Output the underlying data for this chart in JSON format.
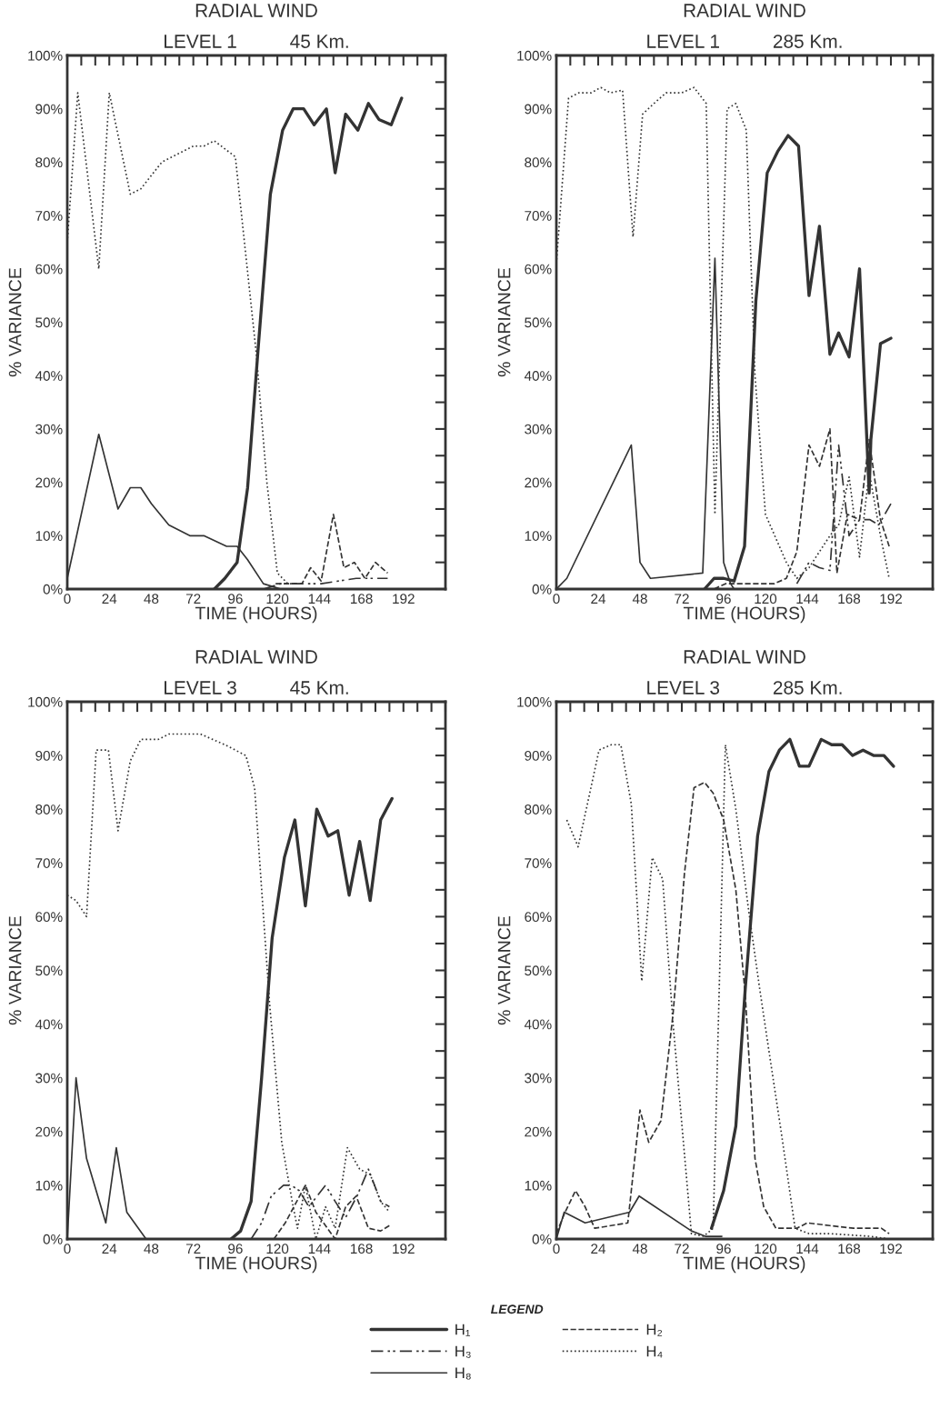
{
  "chart_data": [
    {
      "type": "line",
      "title": "RADIAL WIND",
      "subtitle": "LEVEL 1          45 Km.",
      "xlabel": "TIME (HOURS)",
      "ylabel": "% VARIANCE",
      "xlim": [
        0,
        216
      ],
      "ylim": [
        0,
        100
      ],
      "xticks": [
        0,
        {
          "value": 8,
          "label": null
        },
        {
          "value": 16,
          "label": null
        },
        24,
        {
          "value": 32,
          "label": null
        },
        {
          "value": 40,
          "label": null
        },
        48,
        {
          "value": 56,
          "label": null
        },
        {
          "value": 64,
          "label": null
        },
        72,
        {
          "value": 80,
          "label": null
        },
        {
          "value": 88,
          "label": null
        },
        96,
        {
          "value": 104,
          "label": null
        },
        {
          "value": 112,
          "label": null
        },
        120,
        {
          "value": 128,
          "label": null
        },
        {
          "value": 136,
          "label": null
        },
        144,
        {
          "value": 152,
          "label": null
        },
        {
          "value": 160,
          "label": null
        },
        168,
        {
          "value": 176,
          "label": null
        },
        {
          "value": 184,
          "label": null
        },
        192,
        {
          "value": 200,
          "label": null
        },
        {
          "value": 208,
          "label": null
        },
        {
          "value": 216,
          "label": null
        }
      ],
      "yticks": [
        {
          "value": 0,
          "label": "0%"
        },
        {
          "value": 5,
          "label": null
        },
        {
          "value": 10,
          "label": "10%"
        },
        {
          "value": 15,
          "label": null
        },
        {
          "value": 20,
          "label": "20%"
        },
        {
          "value": 25,
          "label": null
        },
        {
          "value": 30,
          "label": "30%"
        },
        {
          "value": 35,
          "label": null
        },
        {
          "value": 40,
          "label": "40%"
        },
        {
          "value": 45,
          "label": null
        },
        {
          "value": 50,
          "label": "50%"
        },
        {
          "value": 55,
          "label": null
        },
        {
          "value": 60,
          "label": "60%"
        },
        {
          "value": 65,
          "label": null
        },
        {
          "value": 70,
          "label": "70%"
        },
        {
          "value": 75,
          "label": null
        },
        {
          "value": 80,
          "label": "80%"
        },
        {
          "value": 85,
          "label": null
        },
        {
          "value": 90,
          "label": "90%"
        },
        {
          "value": 95,
          "label": null
        },
        {
          "value": 100,
          "label": "100%"
        }
      ],
      "grid": false,
      "series": [
        {
          "color": "#333333",
          "line_style": "solid",
          "x": [
            84,
            90,
            97,
            103,
            109,
            116,
            123,
            129,
            135,
            141,
            148,
            153,
            159,
            166,
            172,
            178,
            185,
            191
          ],
          "values": [
            0,
            2,
            5,
            19,
            45,
            74,
            86,
            90,
            90,
            87,
            90,
            78,
            89,
            86,
            91,
            88,
            87,
            92
          ]
        },
        {
          "color": "#333333",
          "line_style": "dashed",
          "x": [
            119,
            126,
            134,
            139,
            145,
            152,
            158,
            164,
            170,
            176,
            183
          ],
          "values": [
            1,
            1,
            1,
            4,
            1.5,
            14,
            4,
            5,
            2,
            5,
            3
          ]
        },
        {
          "color": "#333333",
          "line_style": "dashdot",
          "x": [
            112,
            122,
            133,
            145,
            155,
            165,
            176,
            183
          ],
          "values": [
            0,
            1,
            1,
            1,
            1.5,
            2,
            2,
            2
          ]
        },
        {
          "color": "#333333",
          "line_style": "dotted",
          "x": [
            0,
            6,
            18,
            24,
            36,
            42,
            54,
            72,
            78,
            84,
            96,
            108,
            114,
            120,
            126,
            132
          ],
          "values": [
            65,
            93,
            60,
            93,
            74,
            75,
            80,
            83,
            83,
            84,
            81,
            44,
            20,
            3,
            1,
            1
          ]
        },
        {
          "color": "#333333",
          "line_style": "solid",
          "x": [
            0,
            18,
            29,
            36,
            42,
            48,
            58,
            70,
            78,
            91,
            97,
            103,
            112,
            122
          ],
          "values": [
            2,
            29,
            15,
            19,
            19,
            16,
            12,
            10,
            10,
            8,
            8,
            5.5,
            1,
            0
          ]
        }
      ]
    },
    {
      "type": "line",
      "title": "RADIAL WIND",
      "subtitle": "LEVEL 1          285 Km.",
      "xlabel": "TIME (HOURS)",
      "ylabel": "% VARIANCE",
      "xlim": [
        0,
        216
      ],
      "ylim": [
        0,
        100
      ],
      "xticks": [
        0,
        {
          "value": 8,
          "label": null
        },
        {
          "value": 16,
          "label": null
        },
        24,
        {
          "value": 32,
          "label": null
        },
        {
          "value": 40,
          "label": null
        },
        48,
        {
          "value": 56,
          "label": null
        },
        {
          "value": 64,
          "label": null
        },
        72,
        {
          "value": 80,
          "label": null
        },
        {
          "value": 88,
          "label": null
        },
        96,
        {
          "value": 104,
          "label": null
        },
        {
          "value": 112,
          "label": null
        },
        120,
        {
          "value": 128,
          "label": null
        },
        {
          "value": 136,
          "label": null
        },
        144,
        {
          "value": 152,
          "label": null
        },
        {
          "value": 160,
          "label": null
        },
        168,
        {
          "value": 176,
          "label": null
        },
        {
          "value": 184,
          "label": null
        },
        192,
        {
          "value": 200,
          "label": null
        },
        {
          "value": 208,
          "label": null
        },
        {
          "value": 216,
          "label": null
        }
      ],
      "yticks": [
        {
          "value": 0,
          "label": "0%"
        },
        {
          "value": 5,
          "label": null
        },
        {
          "value": 10,
          "label": "10%"
        },
        {
          "value": 15,
          "label": null
        },
        {
          "value": 20,
          "label": "20%"
        },
        {
          "value": 25,
          "label": null
        },
        {
          "value": 30,
          "label": "30%"
        },
        {
          "value": 35,
          "label": null
        },
        {
          "value": 40,
          "label": "40%"
        },
        {
          "value": 45,
          "label": null
        },
        {
          "value": 50,
          "label": "50%"
        },
        {
          "value": 55,
          "label": null
        },
        {
          "value": 60,
          "label": "60%"
        },
        {
          "value": 65,
          "label": null
        },
        {
          "value": 70,
          "label": "70%"
        },
        {
          "value": 75,
          "label": null
        },
        {
          "value": 80,
          "label": "80%"
        },
        {
          "value": 85,
          "label": null
        },
        {
          "value": 90,
          "label": "90%"
        },
        {
          "value": 95,
          "label": null
        },
        {
          "value": 100,
          "label": "100%"
        }
      ],
      "grid": false,
      "series": [
        {
          "color": "#333333",
          "line_style": "solid",
          "x": [
            85,
            90.5,
            96,
            102,
            108,
            114.5,
            121,
            127,
            133,
            139,
            145,
            151,
            157,
            162,
            168,
            174,
            179.5,
            180.5,
            186,
            192
          ],
          "values": [
            0,
            2,
            2,
            1.5,
            8,
            54,
            78,
            82,
            85,
            83,
            55,
            68,
            44,
            48,
            43.5,
            60,
            18,
            28,
            46,
            47
          ]
        },
        {
          "color": "#333333",
          "line_style": "dashed",
          "x": [
            90.5,
            97,
            111,
            125,
            132,
            138,
            145,
            151,
            157,
            161,
            167,
            174,
            179.5,
            186,
            191
          ],
          "values": [
            0,
            1,
            1,
            1,
            2,
            7,
            27,
            23,
            30,
            3,
            14,
            13,
            28,
            13,
            8
          ]
        },
        {
          "color": "#333333",
          "line_style": "dashdot",
          "x": [
            138,
            145,
            151,
            157,
            162,
            168,
            174,
            180,
            185,
            192
          ],
          "values": [
            1,
            5,
            4,
            3.5,
            27,
            10,
            13,
            13,
            12,
            16
          ]
        },
        {
          "color": "#333333",
          "line_style": "dotted",
          "x": [
            0,
            7,
            13,
            20,
            25.5,
            31,
            38,
            44,
            49.5,
            56,
            63,
            72,
            79,
            86,
            91,
            98,
            103,
            109,
            114,
            120,
            132,
            138,
            145,
            157,
            162,
            168,
            174,
            179.5,
            186,
            191
          ],
          "values": [
            61,
            92,
            93,
            93,
            94,
            93,
            93.5,
            66,
            89,
            91,
            93,
            93,
            94,
            91,
            14,
            90,
            91,
            86,
            40,
            14,
            5,
            2,
            4,
            10,
            12,
            21,
            6,
            22,
            10,
            2
          ]
        },
        {
          "color": "#333333",
          "line_style": "solid",
          "x": [
            0,
            6,
            43,
            48,
            54,
            84,
            91,
            96,
            100,
            102
          ],
          "values": [
            0,
            2,
            27,
            5,
            2,
            3,
            62,
            5,
            1,
            0
          ]
        }
      ]
    },
    {
      "type": "line",
      "title": "RADIAL WIND",
      "subtitle": "LEVEL 3          45 Km.",
      "xlabel": "TIME (HOURS)",
      "ylabel": "% VARIANCE",
      "xlim": [
        0,
        216
      ],
      "ylim": [
        0,
        100
      ],
      "xticks": [
        0,
        {
          "value": 8,
          "label": null
        },
        {
          "value": 16,
          "label": null
        },
        24,
        {
          "value": 32,
          "label": null
        },
        {
          "value": 40,
          "label": null
        },
        48,
        {
          "value": 56,
          "label": null
        },
        {
          "value": 64,
          "label": null
        },
        72,
        {
          "value": 80,
          "label": null
        },
        {
          "value": 88,
          "label": null
        },
        96,
        {
          "value": 104,
          "label": null
        },
        {
          "value": 112,
          "label": null
        },
        120,
        {
          "value": 128,
          "label": null
        },
        {
          "value": 136,
          "label": null
        },
        144,
        {
          "value": 152,
          "label": null
        },
        {
          "value": 160,
          "label": null
        },
        168,
        {
          "value": 176,
          "label": null
        },
        {
          "value": 184,
          "label": null
        },
        192,
        {
          "value": 200,
          "label": null
        },
        {
          "value": 208,
          "label": null
        },
        {
          "value": 216,
          "label": null
        }
      ],
      "yticks": [
        {
          "value": 0,
          "label": "0%"
        },
        {
          "value": 5,
          "label": null
        },
        {
          "value": 10,
          "label": "10%"
        },
        {
          "value": 15,
          "label": null
        },
        {
          "value": 20,
          "label": "20%"
        },
        {
          "value": 25,
          "label": null
        },
        {
          "value": 30,
          "label": "30%"
        },
        {
          "value": 35,
          "label": null
        },
        {
          "value": 40,
          "label": "40%"
        },
        {
          "value": 45,
          "label": null
        },
        {
          "value": 50,
          "label": "50%"
        },
        {
          "value": 55,
          "label": null
        },
        {
          "value": 60,
          "label": "60%"
        },
        {
          "value": 65,
          "label": null
        },
        {
          "value": 70,
          "label": "70%"
        },
        {
          "value": 75,
          "label": null
        },
        {
          "value": 80,
          "label": "80%"
        },
        {
          "value": 85,
          "label": null
        },
        {
          "value": 90,
          "label": "90%"
        },
        {
          "value": 95,
          "label": null
        },
        {
          "value": 100,
          "label": "100%"
        }
      ],
      "grid": false,
      "legend": "bottom",
      "legend_title": "LEGEND",
      "series": [
        {
          "name": "H₁",
          "color": "#333333",
          "line_style": "solid",
          "x": [
            93.5,
            99,
            105,
            111,
            117,
            124,
            130,
            136,
            142.5,
            149,
            154.5,
            161,
            167,
            173,
            179,
            185.5
          ],
          "values": [
            0,
            1.5,
            7,
            30,
            56,
            71,
            78,
            62,
            80,
            75,
            76,
            64,
            74,
            63,
            78,
            82
          ]
        },
        {
          "name": "H₂",
          "color": "#333333",
          "line_style": "dashed",
          "x": [
            118,
            124.5,
            136,
            142,
            153,
            159,
            165,
            172,
            179,
            184
          ],
          "values": [
            0,
            3,
            10,
            5,
            0,
            6,
            8,
            2,
            1.5,
            2.5
          ]
        },
        {
          "name": "H₃",
          "color": "#333333",
          "line_style": "dashdot",
          "x": [
            105,
            111,
            116.5,
            123.5,
            128,
            132.5,
            138,
            147.5,
            153,
            159,
            165.5,
            172,
            179,
            184
          ],
          "values": [
            0,
            3,
            8,
            10,
            10,
            9,
            6,
            10,
            7,
            4,
            8,
            13,
            7,
            6
          ]
        },
        {
          "name": "H₄",
          "color": "#333333",
          "line_style": "dotted",
          "x": [
            0,
            5,
            11,
            16.5,
            23.5,
            29,
            36,
            42,
            52,
            58,
            76,
            83,
            90,
            102,
            107,
            115.5,
            122.5,
            129,
            131.5,
            136,
            142,
            147.5,
            153,
            160,
            167,
            173,
            179,
            184
          ],
          "values": [
            64,
            63,
            60,
            91,
            91,
            76,
            89,
            93,
            93,
            94,
            94,
            93,
            92,
            90,
            84,
            44,
            18,
            6,
            2,
            10,
            0,
            6,
            2,
            17,
            13,
            12,
            7,
            5
          ]
        },
        {
          "name": "H₈",
          "color": "#333333",
          "line_style": "solid",
          "x": [
            0,
            5,
            11,
            22,
            28,
            34,
            45
          ],
          "values": [
            0,
            30,
            15,
            3,
            17,
            5,
            0
          ]
        }
      ]
    },
    {
      "type": "line",
      "title": "RADIAL WIND",
      "subtitle": "LEVEL 3          285 Km.",
      "xlabel": "TIME (HOURS)",
      "ylabel": "% VARIANCE",
      "xlim": [
        0,
        216
      ],
      "ylim": [
        0,
        100
      ],
      "xticks": [
        0,
        {
          "value": 8,
          "label": null
        },
        {
          "value": 16,
          "label": null
        },
        24,
        {
          "value": 32,
          "label": null
        },
        {
          "value": 40,
          "label": null
        },
        48,
        {
          "value": 56,
          "label": null
        },
        {
          "value": 64,
          "label": null
        },
        72,
        {
          "value": 80,
          "label": null
        },
        {
          "value": 88,
          "label": null
        },
        96,
        {
          "value": 104,
          "label": null
        },
        {
          "value": 112,
          "label": null
        },
        120,
        {
          "value": 128,
          "label": null
        },
        {
          "value": 136,
          "label": null
        },
        144,
        {
          "value": 152,
          "label": null
        },
        {
          "value": 160,
          "label": null
        },
        168,
        {
          "value": 176,
          "label": null
        },
        {
          "value": 184,
          "label": null
        },
        192,
        {
          "value": 200,
          "label": null
        },
        {
          "value": 208,
          "label": null
        },
        {
          "value": 216,
          "label": null
        }
      ],
      "yticks": [
        {
          "value": 0,
          "label": "0%"
        },
        {
          "value": 5,
          "label": null
        },
        {
          "value": 10,
          "label": "10%"
        },
        {
          "value": 15,
          "label": null
        },
        {
          "value": 20,
          "label": "20%"
        },
        {
          "value": 25,
          "label": null
        },
        {
          "value": 30,
          "label": "30%"
        },
        {
          "value": 35,
          "label": null
        },
        {
          "value": 40,
          "label": "40%"
        },
        {
          "value": 45,
          "label": null
        },
        {
          "value": 50,
          "label": "50%"
        },
        {
          "value": 55,
          "label": null
        },
        {
          "value": 60,
          "label": "60%"
        },
        {
          "value": 65,
          "label": null
        },
        {
          "value": 70,
          "label": "70%"
        },
        {
          "value": 75,
          "label": null
        },
        {
          "value": 80,
          "label": "80%"
        },
        {
          "value": 85,
          "label": null
        },
        {
          "value": 90,
          "label": "90%"
        },
        {
          "value": 95,
          "label": null
        },
        {
          "value": 100,
          "label": "100%"
        }
      ],
      "grid": false,
      "series": [
        {
          "color": "#333333",
          "line_style": "solid",
          "x": [
            89,
            96,
            103,
            108.5,
            115.5,
            122,
            128,
            134,
            139.5,
            145,
            152,
            158,
            164,
            170,
            176,
            182,
            188,
            193.5
          ],
          "values": [
            2,
            9,
            21,
            47,
            75,
            87,
            91,
            93,
            88,
            88,
            93,
            92,
            92,
            90,
            91,
            90,
            90,
            88
          ]
        },
        {
          "color": "#333333",
          "line_style": "dashed",
          "x": [
            0,
            5,
            11,
            16.5,
            22,
            41,
            48,
            53,
            60,
            67,
            73.5,
            79,
            85,
            90,
            96,
            103,
            108.5,
            114,
            119,
            126,
            138,
            144,
            157,
            170.5,
            186.5,
            191
          ],
          "values": [
            1,
            5,
            9,
            6,
            2,
            3,
            24,
            18,
            22,
            42,
            68,
            84,
            85,
            83,
            78,
            65,
            45,
            15,
            6,
            2,
            2,
            3,
            2.5,
            2,
            2,
            1
          ]
        },
        {
          "color": "#333333",
          "line_style": "dotted",
          "x": [
            6,
            12.5,
            24.5,
            31.5,
            37,
            43,
            49,
            55,
            61,
            67,
            77.5,
            84.5,
            90,
            97,
            103,
            110,
            116.5,
            122,
            129,
            137,
            145,
            157,
            180,
            191
          ],
          "values": [
            78,
            73,
            91,
            92,
            92,
            81,
            48,
            71,
            67,
            40,
            1,
            0.5,
            2,
            92,
            80,
            62,
            47,
            35,
            20,
            2,
            1,
            1,
            0.5,
            0
          ]
        },
        {
          "color": "#333333",
          "line_style": "solid",
          "x": [
            0,
            4.5,
            16.5,
            42,
            47.5,
            77.5,
            85.5,
            95
          ],
          "values": [
            0,
            5,
            3,
            5,
            8,
            1.5,
            0.5,
            0.5
          ]
        }
      ]
    }
  ]
}
